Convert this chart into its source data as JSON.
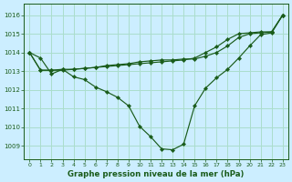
{
  "title": "Graphe pression niveau de la mer (hPa)",
  "bg_color": "#cceeff",
  "grid_color": "#aaddcc",
  "line_color": "#1a5c1a",
  "x_ticks": [
    0,
    1,
    2,
    3,
    4,
    5,
    6,
    7,
    8,
    9,
    10,
    11,
    12,
    13,
    14,
    15,
    16,
    17,
    18,
    19,
    20,
    21,
    22,
    23
  ],
  "y_ticks": [
    1009,
    1010,
    1011,
    1012,
    1013,
    1014,
    1015,
    1016
  ],
  "ylim": [
    1008.3,
    1016.6
  ],
  "xlim": [
    -0.5,
    23.5
  ],
  "line1": [
    1014.0,
    1013.7,
    1012.85,
    1013.1,
    1012.7,
    1012.55,
    1012.15,
    1011.9,
    1011.6,
    1011.15,
    1010.05,
    1009.5,
    1008.85,
    1008.8,
    1009.1,
    1011.15,
    1012.1,
    1012.65,
    1013.1,
    1013.7,
    1014.35,
    1014.95,
    1015.05,
    1016.0
  ],
  "line2": [
    1014.0,
    1013.05,
    1013.05,
    1013.05,
    1013.1,
    1013.15,
    1013.2,
    1013.3,
    1013.35,
    1013.4,
    1013.5,
    1013.55,
    1013.6,
    1013.6,
    1013.65,
    1013.65,
    1013.8,
    1014.0,
    1014.35,
    1014.8,
    1015.0,
    1015.05,
    1015.1,
    1016.0
  ],
  "line3": [
    1014.0,
    1013.05,
    1013.05,
    1013.1,
    1013.1,
    1013.15,
    1013.2,
    1013.25,
    1013.3,
    1013.35,
    1013.4,
    1013.45,
    1013.5,
    1013.55,
    1013.6,
    1013.7,
    1014.0,
    1014.3,
    1014.7,
    1015.0,
    1015.05,
    1015.1,
    1015.1,
    1016.0
  ]
}
